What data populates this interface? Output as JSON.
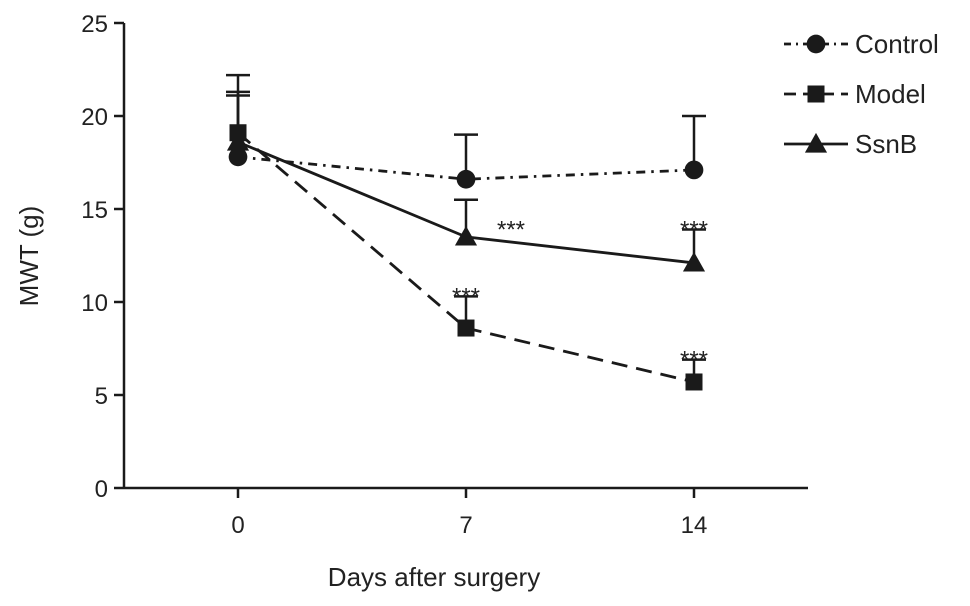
{
  "chart_data": {
    "type": "line",
    "title": "",
    "xlabel": "Days after surgery",
    "ylabel": "MWT (g)",
    "x": [
      0,
      7,
      14
    ],
    "xticks": [
      "0",
      "7",
      "14"
    ],
    "xlim": [
      -3.5,
      17.5
    ],
    "ylim": [
      0,
      25
    ],
    "yticks": [
      0,
      5,
      10,
      15,
      20,
      25
    ],
    "grid": false,
    "legend_position": "top-right",
    "series": [
      {
        "name": "Control",
        "marker": "circle",
        "line_style": "dash-dot",
        "color": "#1a1a1a",
        "values": [
          17.8,
          16.6,
          17.1
        ],
        "error": [
          3.5,
          2.4,
          2.9
        ],
        "significance": [
          "",
          "",
          ""
        ]
      },
      {
        "name": "Model",
        "marker": "square",
        "line_style": "dashed",
        "color": "#1a1a1a",
        "values": [
          19.1,
          8.6,
          5.7
        ],
        "error": [
          3.1,
          1.7,
          1.2
        ],
        "significance": [
          "",
          "***",
          "***"
        ]
      },
      {
        "name": "SsnB",
        "marker": "triangle",
        "line_style": "solid",
        "color": "#1a1a1a",
        "values": [
          18.6,
          13.5,
          12.1
        ],
        "error": [
          2.5,
          2.0,
          1.8
        ],
        "significance": [
          "",
          "***",
          "***"
        ]
      }
    ]
  }
}
